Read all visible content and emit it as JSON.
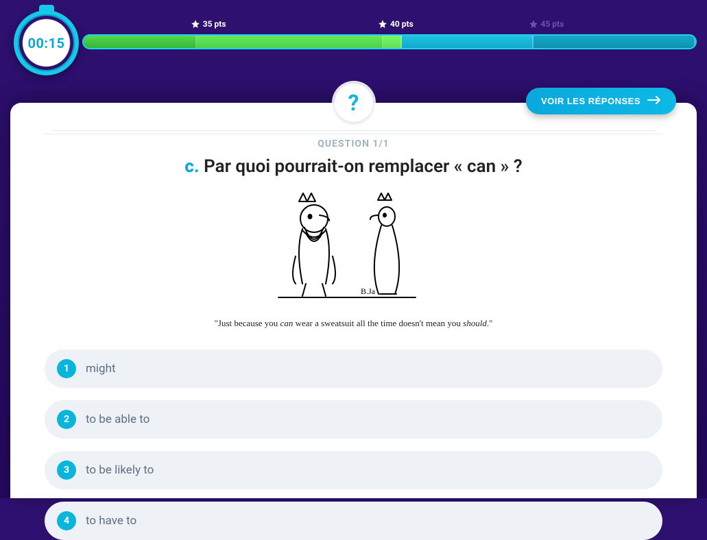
{
  "timer": {
    "display": "00:15",
    "ring_color": "#18c8e8",
    "text_color": "#0aa8d6"
  },
  "progress": {
    "markers": [
      {
        "label": "35 pts",
        "position_pct": 18.5,
        "status": "active"
      },
      {
        "label": "40 pts",
        "position_pct": 49,
        "status": "active"
      },
      {
        "label": "45 pts",
        "position_pct": 73.5,
        "status": "inactive"
      }
    ],
    "segments": [
      {
        "left_pct": 0,
        "width_pct": 18.5,
        "fill": "fill-green1"
      },
      {
        "left_pct": 18.5,
        "width_pct": 30.5,
        "fill": "fill-green2"
      },
      {
        "left_pct": 49,
        "width_pct": 3,
        "fill": "fill-green3"
      },
      {
        "left_pct": 52,
        "width_pct": 21.5,
        "fill": "fill-cyan"
      },
      {
        "left_pct": 73.5,
        "width_pct": 26.5,
        "fill": "fill-teal"
      }
    ],
    "track_border": "#18d5f0",
    "track_bg": "#0b90b4"
  },
  "button_answers": "VOIR LES RÉPONSES",
  "question": {
    "counter": "QUESTION 1/1",
    "prefix": "c.",
    "text": "Par quoi pourrait-on remplacer « can » ?",
    "caption_pre": "\"Just because you ",
    "caption_ital1": "can",
    "caption_mid": " wear a sweatsuit all the time doesn't mean you ",
    "caption_ital2": "should",
    "caption_post": ".\""
  },
  "answers": [
    {
      "n": "1",
      "label": "might"
    },
    {
      "n": "2",
      "label": "to be able to"
    },
    {
      "n": "3",
      "label": "to be likely to"
    },
    {
      "n": "4",
      "label": "to have to"
    }
  ],
  "colors": {
    "accent": "#0aa8dc",
    "answer_bg": "#eef1f5",
    "answer_num_bg": "#0ab5db",
    "answer_text": "#5d6f86"
  }
}
